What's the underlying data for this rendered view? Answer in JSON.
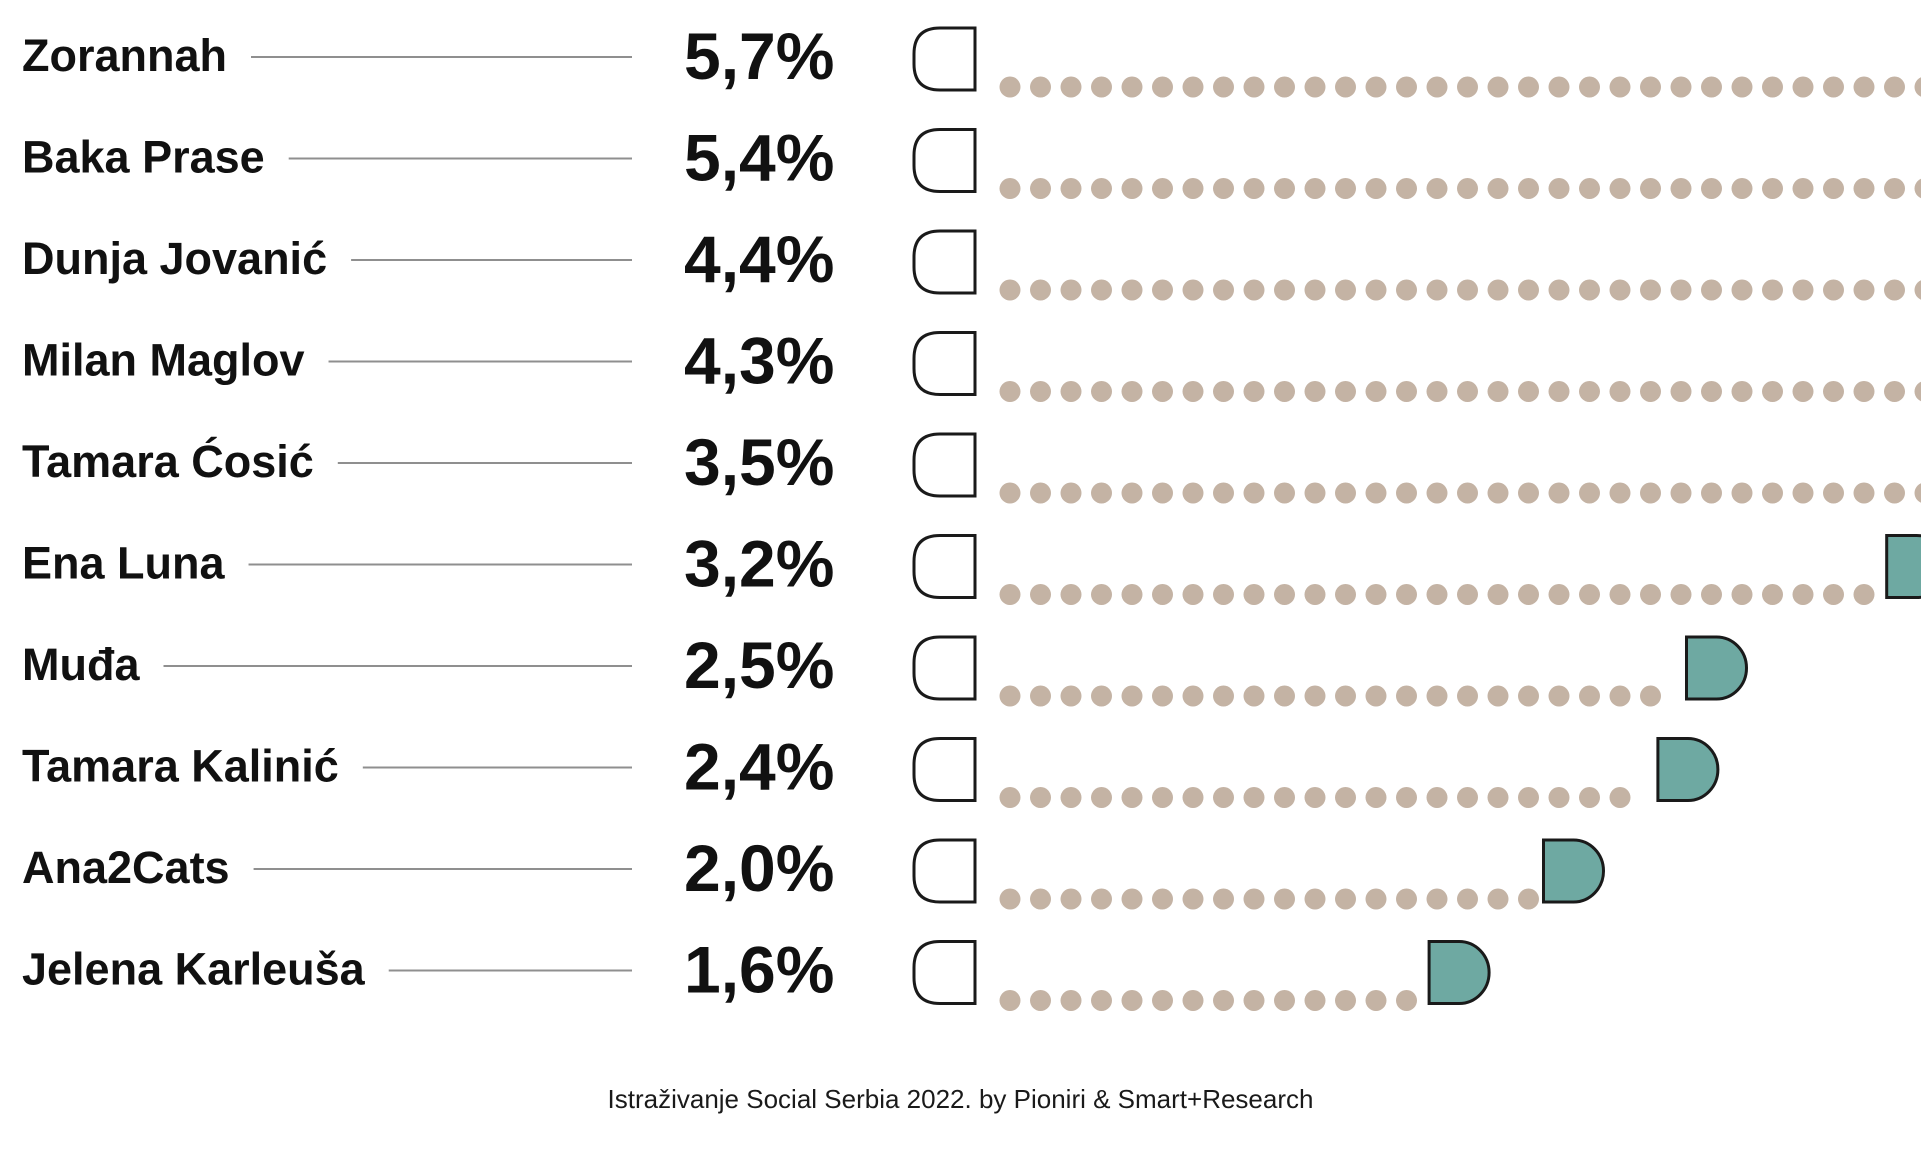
{
  "chart_data": {
    "type": "bar",
    "categories": [
      "Zorannah",
      "Baka Prase",
      "Dunja Jovanić",
      "Milan Maglov",
      "Tamara Ćosić",
      "Ena Luna",
      "Muđa",
      "Tamara Kalinić",
      "Ana2Cats",
      "Jelena Karleuša"
    ],
    "value_labels": [
      "5,7%",
      "5,4%",
      "4,4%",
      "4,3%",
      "3,5%",
      "3,2%",
      "2,5%",
      "2,4%",
      "2,0%",
      "1,6%"
    ],
    "values": [
      5.7,
      5.4,
      4.4,
      4.3,
      3.5,
      3.2,
      2.5,
      2.4,
      2.0,
      1.6
    ],
    "unit": "%",
    "orientation": "horizontal",
    "title": "",
    "xlabel": "",
    "ylabel": "",
    "legend": "none",
    "grid": false
  },
  "source": "Istraživanje Social Serbia 2022. by Pioniri & Smart+Research",
  "colors": {
    "dot": "#c4b3a4",
    "end_cap": "#6ea9a2",
    "outline": "#1a1a1a",
    "leader_line": "#8f8f8f",
    "text": "#111111"
  }
}
